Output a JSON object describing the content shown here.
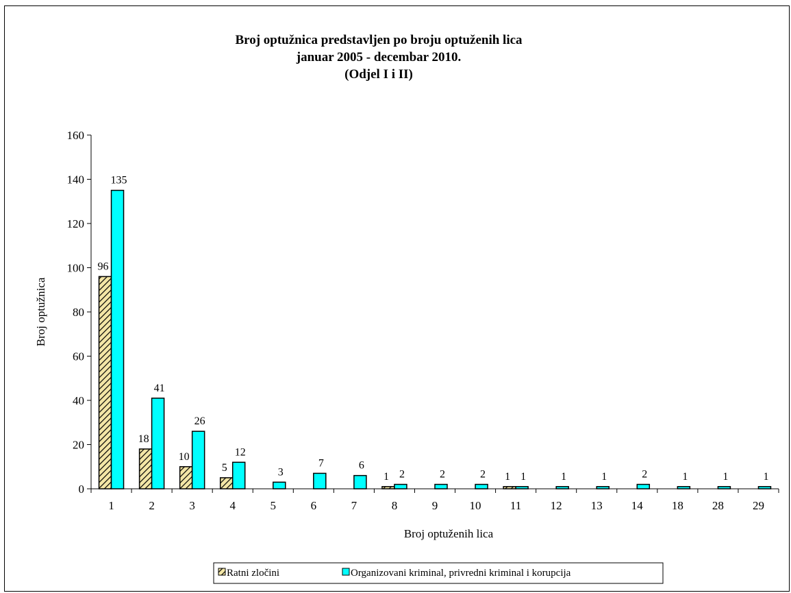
{
  "chart_data": {
    "type": "bar",
    "title": [
      "Broj optužnica predstavljen po broju optuženih lica",
      "januar 2005 - decembar 2010.",
      "(Odjel I i II)"
    ],
    "xlabel": "Broj optuženih lica",
    "ylabel": "Broj optužnica",
    "ylim": [
      0,
      160
    ],
    "yticks": [
      "0",
      "20",
      "40",
      "60",
      "80",
      "100",
      "120",
      "140",
      "160"
    ],
    "categories": [
      "1",
      "2",
      "3",
      "4",
      "5",
      "6",
      "7",
      "8",
      "9",
      "10",
      "11",
      "12",
      "13",
      "14",
      "18",
      "28",
      "29"
    ],
    "series": [
      {
        "name": "Ratni zločini",
        "values": [
          96,
          18,
          10,
          5,
          null,
          null,
          null,
          1,
          null,
          null,
          1,
          null,
          null,
          null,
          null,
          null,
          null
        ],
        "color": "#f3e6a6",
        "pattern": "diagonal-hatch"
      },
      {
        "name": "Organizovani kriminal, privredni kriminal i korupcija",
        "values": [
          135,
          41,
          26,
          12,
          3,
          7,
          6,
          2,
          2,
          2,
          1,
          1,
          1,
          2,
          1,
          1,
          1
        ],
        "color": "#00ffff"
      }
    ],
    "legend_position": "bottom",
    "grid": false
  }
}
